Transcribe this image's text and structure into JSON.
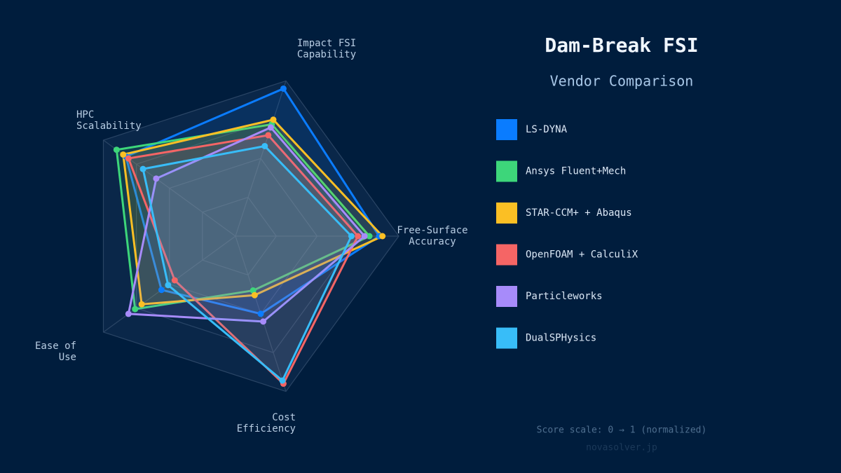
{
  "chart_data": {
    "type": "radar",
    "title": "Dam-Break FSI",
    "subtitle": "Vendor Comparison",
    "note": "Score scale: 0 → 1 (normalized)",
    "watermark": "novasolver.jp",
    "categories": [
      [
        "Free-Surface",
        "Accuracy"
      ],
      [
        "Impact FSI",
        "Capability"
      ],
      [
        "HPC",
        "Scalability"
      ],
      [
        "Ease of",
        "Use"
      ],
      [
        "Cost",
        "Efficiency"
      ]
    ],
    "rlim": [
      0,
      1
    ],
    "rticks": [
      0.25,
      0.5,
      0.75,
      1
    ],
    "grid": true,
    "series": [
      {
        "name": "LS-DYNA",
        "color": "#0a7cff",
        "values": [
          0.88,
          0.95,
          0.83,
          0.56,
          0.5
        ]
      },
      {
        "name": "Ansys Fluent+Mech",
        "color": "#3dd67a",
        "values": [
          0.82,
          0.72,
          0.9,
          0.76,
          0.35
        ]
      },
      {
        "name": "STAR-CCM+ + Abaqus",
        "color": "#fbbf24",
        "values": [
          0.9,
          0.75,
          0.85,
          0.71,
          0.38
        ]
      },
      {
        "name": "OpenFOAM + CalculiX",
        "color": "#f56565",
        "values": [
          0.75,
          0.65,
          0.81,
          0.46,
          0.95
        ]
      },
      {
        "name": "Particleworks",
        "color": "#a78bfa",
        "values": [
          0.79,
          0.7,
          0.6,
          0.81,
          0.55
        ]
      },
      {
        "name": "DualSPHysics",
        "color": "#38bdf8",
        "values": [
          0.71,
          0.58,
          0.7,
          0.51,
          0.93
        ]
      }
    ]
  }
}
